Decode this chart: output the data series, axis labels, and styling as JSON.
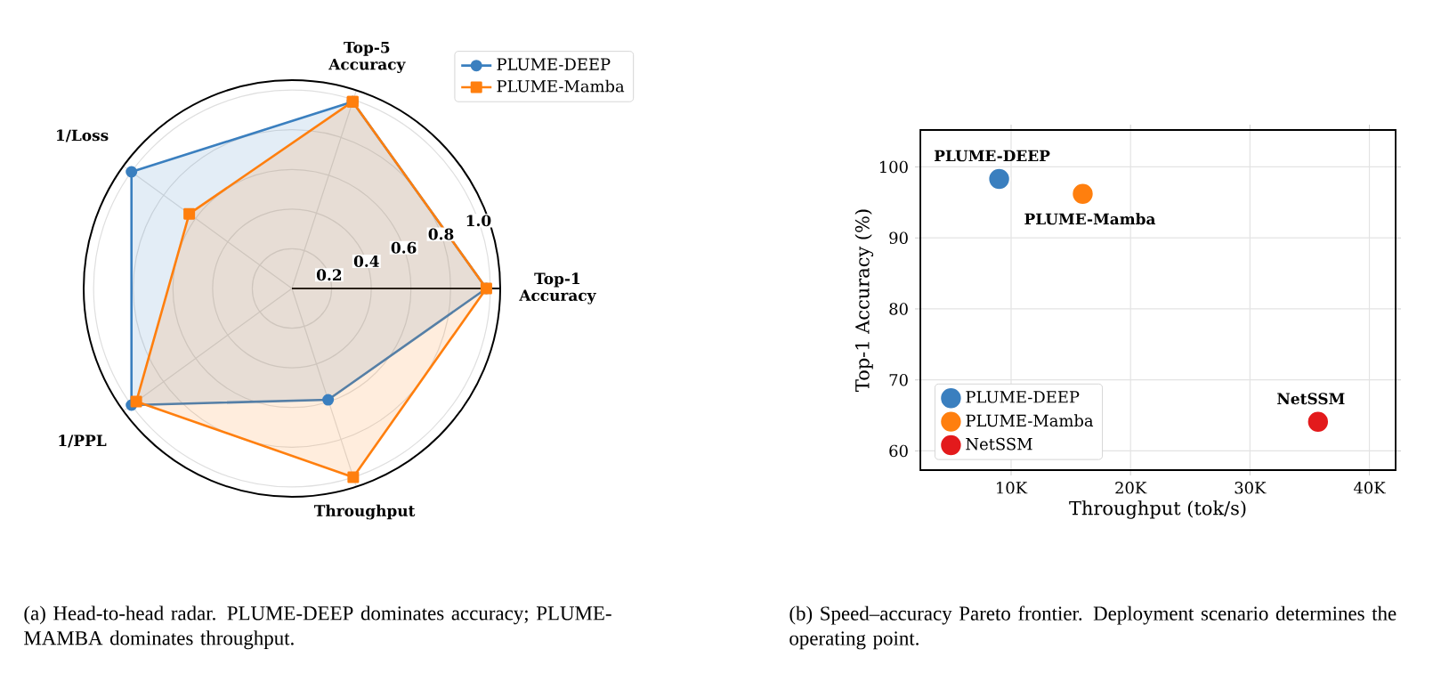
{
  "chart_data": [
    {
      "type": "radar",
      "categories": [
        "Top-5 Accuracy",
        "Top-1 Accuracy",
        "Throughput",
        "1/PPL",
        "1/Loss"
      ],
      "series": [
        {
          "name": "PLUME-DEEP",
          "color": "#3a7fbf",
          "marker": "circle",
          "values": [
            0.99,
            0.98,
            0.59,
            1.0,
            1.0
          ]
        },
        {
          "name": "PLUME-Mamba",
          "color": "#ff7f0e",
          "marker": "square",
          "values": [
            0.99,
            0.98,
            1.0,
            0.97,
            0.64
          ]
        }
      ],
      "ylim": [
        0,
        1.05
      ],
      "yticks": [
        0.2,
        0.4,
        0.6,
        0.8,
        {
          "value": 1,
          "label": "1.0"
        }
      ],
      "grid": true,
      "legend": "top right",
      "annotations": [
        "(a) Head-to-head radar. PLUME-DEEP dominates accuracy; PLUME-MAMBA dominates throughput."
      ]
    },
    {
      "type": "scatter",
      "xlabel": "Throughput (tok/s)",
      "ylabel": "Top-1 Accuracy (%)",
      "series": [
        {
          "name": "PLUME-DEEP",
          "color": "#3a7fbf",
          "x": [
            9000
          ],
          "values": [
            98.3
          ]
        },
        {
          "name": "PLUME-Mamba",
          "color": "#ff7f0e",
          "x": [
            16000
          ],
          "values": [
            96.2
          ]
        },
        {
          "name": "NetSSM",
          "color": "#e31a1c",
          "x": [
            35700
          ],
          "values": [
            64.1
          ]
        }
      ],
      "xlim": [
        2400,
        42200
      ],
      "ylim": [
        57.3,
        105.2
      ],
      "xticks": [
        {
          "value": 10000,
          "label": "10K"
        },
        {
          "value": 20000,
          "label": "20K"
        },
        {
          "value": 30000,
          "label": "30K"
        },
        {
          "value": 40000,
          "label": "40K"
        }
      ],
      "yticks": [
        60,
        70,
        80,
        90,
        100
      ],
      "grid": true,
      "legend": "bottom left",
      "annotations": [
        {
          "text": "PLUME-DEEP",
          "x": 9000,
          "y": 98.3
        },
        {
          "text": "PLUME-Mamba",
          "x": 16000,
          "y": 96.2
        },
        {
          "text": "NetSSM",
          "x": 35700,
          "y": 64.1
        },
        "(b) Speed–accuracy Pareto frontier. Deployment scenario determines the operating point."
      ]
    }
  ]
}
